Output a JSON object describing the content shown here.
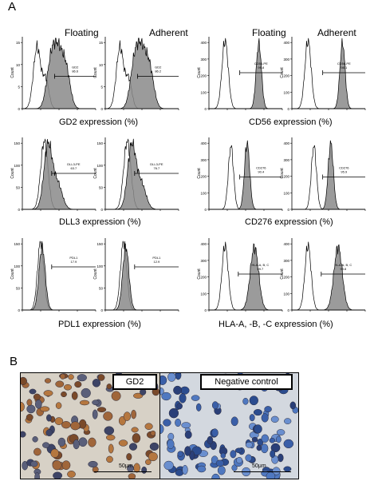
{
  "figure": {
    "panel_a_letter": "A",
    "panel_b_letter": "B",
    "columns": {
      "left_floating": "Floating",
      "left_adherent": "Adherent",
      "right_floating": "Floating",
      "right_adherent": "Adherent"
    },
    "y_axis_label": "Count",
    "x_axis_label": "FL1-H",
    "colors": {
      "isotype_fill": "#ffffff",
      "marker_fill": "#8a8a8a",
      "line": "#000000"
    },
    "rows": [
      {
        "left": {
          "expression_label": "GD2 expression (%)",
          "y_ticks": [
            "0",
            "5",
            "10",
            "15"
          ],
          "floating": {
            "gate_name": "GD2",
            "gate_value": "86.6"
          },
          "adherent": {
            "gate_name": "GD2",
            "gate_value": "86.2"
          }
        },
        "right": {
          "expression_label": "CD56 expression (%)",
          "y_ticks": [
            "0",
            "100",
            "200",
            "300",
            "400"
          ],
          "floating": {
            "gate_name": "CD56-PE",
            "gate_value": "99.8"
          },
          "adherent": {
            "gate_name": "CD56-PE",
            "gate_value": "98.1"
          }
        }
      },
      {
        "left": {
          "expression_label": "DLL3 expression (%)",
          "y_ticks": [
            "0",
            "50",
            "100",
            "150"
          ],
          "floating": {
            "gate_name": "DLL3-PE",
            "gate_value": "63.7"
          },
          "adherent": {
            "gate_name": "DLL3-PE",
            "gate_value": "76.7"
          }
        },
        "right": {
          "expression_label": "CD276 expression (%)",
          "y_ticks": [
            "0",
            "100",
            "200",
            "300",
            "400"
          ],
          "floating": {
            "gate_name": "CD276",
            "gate_value": "90.4"
          },
          "adherent": {
            "gate_name": "CD276",
            "gate_value": "95.9"
          }
        }
      },
      {
        "left": {
          "expression_label": "PDL1 expression (%)",
          "y_ticks": [
            "0",
            "50",
            "100",
            "150"
          ],
          "floating": {
            "gate_name": "PDL1",
            "gate_value": "17.9"
          },
          "adherent": {
            "gate_name": "PDL1",
            "gate_value": "12.9"
          }
        },
        "right": {
          "expression_label": "HLA-A, -B, -C expression (%)",
          "y_ticks": [
            "0",
            "100",
            "200",
            "300",
            "400"
          ],
          "floating": {
            "gate_name": "HLA-A, B, C",
            "gate_value": "99.7"
          },
          "adherent": {
            "gate_name": "HLA-A, B, C",
            "gate_value": "99.8"
          }
        }
      }
    ],
    "panel_b": {
      "left_label": "GD2",
      "right_label": "Negative control",
      "left_scale": "50μm",
      "right_scale": "50μm"
    }
  }
}
